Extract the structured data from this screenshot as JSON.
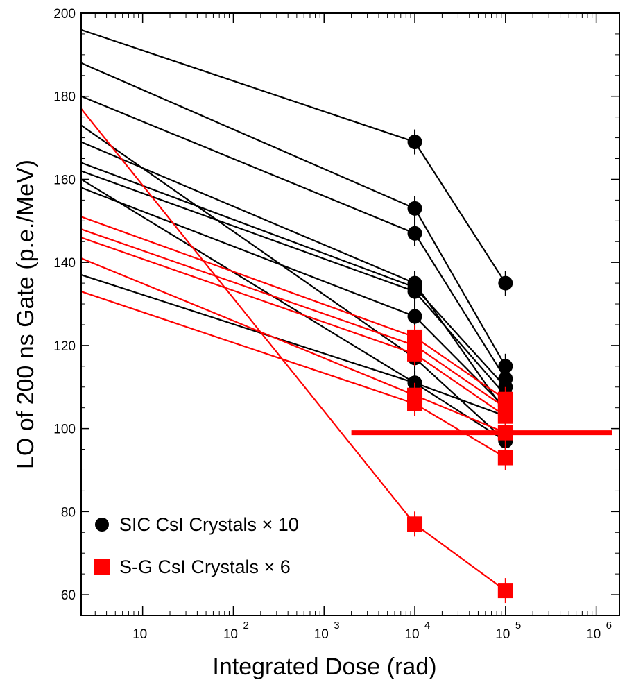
{
  "chart_data": {
    "type": "scatter",
    "title": "",
    "xlabel": "Integrated Dose (rad)",
    "ylabel": "LO of 200 ns Gate (p.e./MeV)",
    "xscale": "log",
    "xlim": [
      2.1,
      1800000
    ],
    "ylim": [
      55,
      200
    ],
    "grid": false,
    "legend_position": "bottom-left",
    "x_ticks": [
      {
        "value": 10,
        "base": "10",
        "exp": ""
      },
      {
        "value": 100,
        "base": "10",
        "exp": "2"
      },
      {
        "value": 1000,
        "base": "10",
        "exp": "3"
      },
      {
        "value": 10000,
        "base": "10",
        "exp": "4"
      },
      {
        "value": 100000,
        "base": "10",
        "exp": "5"
      },
      {
        "value": 1000000,
        "base": "10",
        "exp": "6"
      }
    ],
    "y_ticks": [
      "60",
      "80",
      "100",
      "120",
      "140",
      "160",
      "180",
      "200"
    ],
    "legend": [
      {
        "label": "SIC CsI Crystals × 10",
        "marker": "circle",
        "color": "#000000"
      },
      {
        "label": "S-G CsI Crystals × 6",
        "marker": "square",
        "color": "#ff0000"
      }
    ],
    "threshold_line": {
      "y": 99,
      "x_from": 2000,
      "x_to": 1500000,
      "color": "#ff0000"
    },
    "series": [
      {
        "group": "SIC",
        "color": "#000000",
        "marker": "circle",
        "x": [
          2.1,
          10000,
          100000
        ],
        "y": [
          196,
          169,
          135
        ]
      },
      {
        "group": "SIC",
        "color": "#000000",
        "marker": "circle",
        "x": [
          2.1,
          10000,
          100000
        ],
        "y": [
          188,
          153,
          115
        ]
      },
      {
        "group": "SIC",
        "color": "#000000",
        "marker": "circle",
        "x": [
          2.1,
          10000,
          100000
        ],
        "y": [
          180,
          147,
          112
        ]
      },
      {
        "group": "SIC",
        "color": "#000000",
        "marker": "circle",
        "x": [
          2.1,
          10000,
          100000
        ],
        "y": [
          169,
          135,
          104
        ]
      },
      {
        "group": "SIC",
        "color": "#000000",
        "marker": "circle",
        "x": [
          2.1,
          10000,
          100000
        ],
        "y": [
          164,
          134,
          110
        ]
      },
      {
        "group": "SIC",
        "color": "#000000",
        "marker": "circle",
        "x": [
          2.1,
          10000,
          100000
        ],
        "y": [
          162,
          133,
          108
        ]
      },
      {
        "group": "SIC",
        "color": "#000000",
        "marker": "circle",
        "x": [
          2.1,
          10000,
          100000
        ],
        "y": [
          158,
          127,
          105
        ]
      },
      {
        "group": "SIC",
        "color": "#000000",
        "marker": "circle",
        "x": [
          2.1,
          10000,
          100000
        ],
        "y": [
          173,
          117,
          97
        ]
      },
      {
        "group": "SIC",
        "color": "#000000",
        "marker": "circle",
        "x": [
          2.1,
          10000,
          100000
        ],
        "y": [
          160,
          111,
          103
        ]
      },
      {
        "group": "SIC",
        "color": "#000000",
        "marker": "circle",
        "x": [
          2.1,
          10000,
          100000
        ],
        "y": [
          137,
          111,
          97
        ]
      },
      {
        "group": "S-G",
        "color": "#ff0000",
        "marker": "square",
        "x": [
          2.1,
          10000,
          100000
        ],
        "y": [
          177,
          77,
          61
        ]
      },
      {
        "group": "S-G",
        "color": "#ff0000",
        "marker": "square",
        "x": [
          2.1,
          10000,
          100000
        ],
        "y": [
          151,
          122,
          107
        ]
      },
      {
        "group": "S-G",
        "color": "#ff0000",
        "marker": "square",
        "x": [
          2.1,
          10000,
          100000
        ],
        "y": [
          148,
          120,
          105
        ]
      },
      {
        "group": "S-G",
        "color": "#ff0000",
        "marker": "square",
        "x": [
          2.1,
          10000,
          100000
        ],
        "y": [
          146,
          118,
          103
        ]
      },
      {
        "group": "S-G",
        "color": "#ff0000",
        "marker": "square",
        "x": [
          2.1,
          10000,
          100000
        ],
        "y": [
          141,
          108,
          99
        ]
      },
      {
        "group": "S-G",
        "color": "#ff0000",
        "marker": "square",
        "x": [
          2.1,
          10000,
          100000
        ],
        "y": [
          133,
          106,
          93
        ]
      }
    ]
  }
}
